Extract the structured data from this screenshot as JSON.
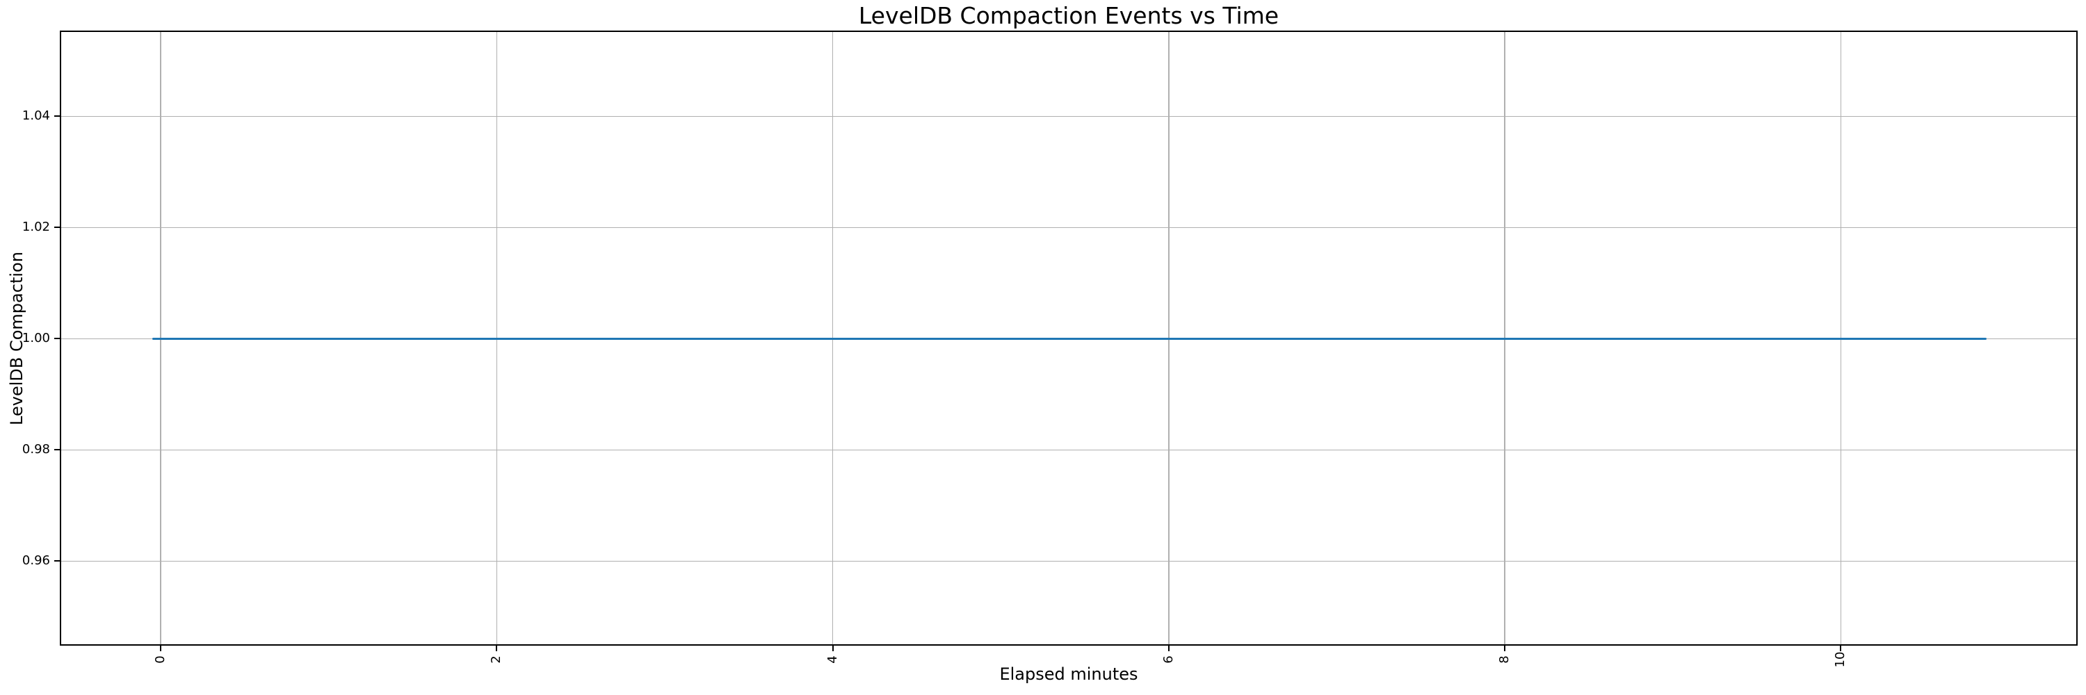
{
  "chart_data": {
    "type": "line",
    "title": "LevelDB Compaction Events vs Time",
    "xlabel": "Elapsed minutes",
    "ylabel": "LevelDB Compaction",
    "x_ticks": [
      0,
      2,
      4,
      6,
      8,
      10
    ],
    "x_tick_labels": [
      "0",
      "2",
      "4",
      "6",
      "8",
      "10"
    ],
    "y_ticks": [
      0.96,
      0.98,
      1.0,
      1.02,
      1.04
    ],
    "y_tick_labels": [
      "0.96",
      "0.98",
      "1.00",
      "1.02",
      "1.04"
    ],
    "xlim": [
      -0.6,
      11.41
    ],
    "ylim": [
      0.9448,
      1.0554
    ],
    "grid": true,
    "x_tick_rotation_degrees": 90,
    "series": [
      {
        "name": "LevelDB Compaction",
        "x_start": -0.05,
        "x_end": 10.87,
        "value": 1.0,
        "note": "constant value 1.0 across the entire elapsed-time range",
        "color": "#1f77b4"
      }
    ],
    "colors": {
      "grid": "#b0b0b0",
      "spine": "#000000",
      "text": "#000000",
      "background": "#ffffff"
    }
  }
}
